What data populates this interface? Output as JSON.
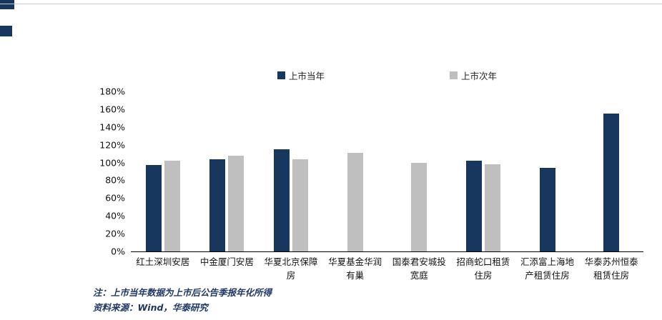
{
  "decor": {
    "accent_color": "#17375E",
    "rule_color": "#c9c9c9"
  },
  "legend": [
    {
      "label": "上市当年",
      "color": "#17375E"
    },
    {
      "label": "上市次年",
      "color": "#BFBFBF"
    }
  ],
  "chart_data": {
    "type": "bar",
    "title": "",
    "xlabel": "",
    "ylabel": "",
    "categories": [
      "红土深圳安居",
      "中金厦门安居",
      "华夏北京保障房",
      "华夏基金华润有巢",
      "国泰君安城投宽庭",
      "招商蛇口租赁住房",
      "汇添富上海地产租赁住房",
      "华泰苏州恒泰租赁住房"
    ],
    "category_labels": [
      [
        "红土深圳安居"
      ],
      [
        "中金厦门安居"
      ],
      [
        "华夏北京保障",
        "房"
      ],
      [
        "华夏基金华润",
        "有巢"
      ],
      [
        "国泰君安城投",
        "宽庭"
      ],
      [
        "招商蛇口租赁",
        "住房"
      ],
      [
        "汇添富上海地",
        "产租赁住房"
      ],
      [
        "华泰苏州恒泰",
        "租赁住房"
      ]
    ],
    "series": [
      {
        "name": "上市当年",
        "color": "#17375E",
        "values": [
          97,
          104,
          115,
          null,
          null,
          102,
          94,
          155
        ]
      },
      {
        "name": "上市次年",
        "color": "#BFBFBF",
        "values": [
          102,
          108,
          104,
          111,
          100,
          98,
          null,
          null
        ]
      }
    ],
    "ylim": [
      0,
      180
    ],
    "ytick_step": 20,
    "ytick_labels": [
      "0%",
      "20%",
      "40%",
      "60%",
      "80%",
      "100%",
      "120%",
      "140%",
      "160%",
      "180%"
    ],
    "grid": false,
    "legend_position": "top"
  },
  "notes": {
    "note1": "注：上市当年数据为上市后公告季报年化所得",
    "note2": "资料来源：Wind，华泰研究"
  }
}
